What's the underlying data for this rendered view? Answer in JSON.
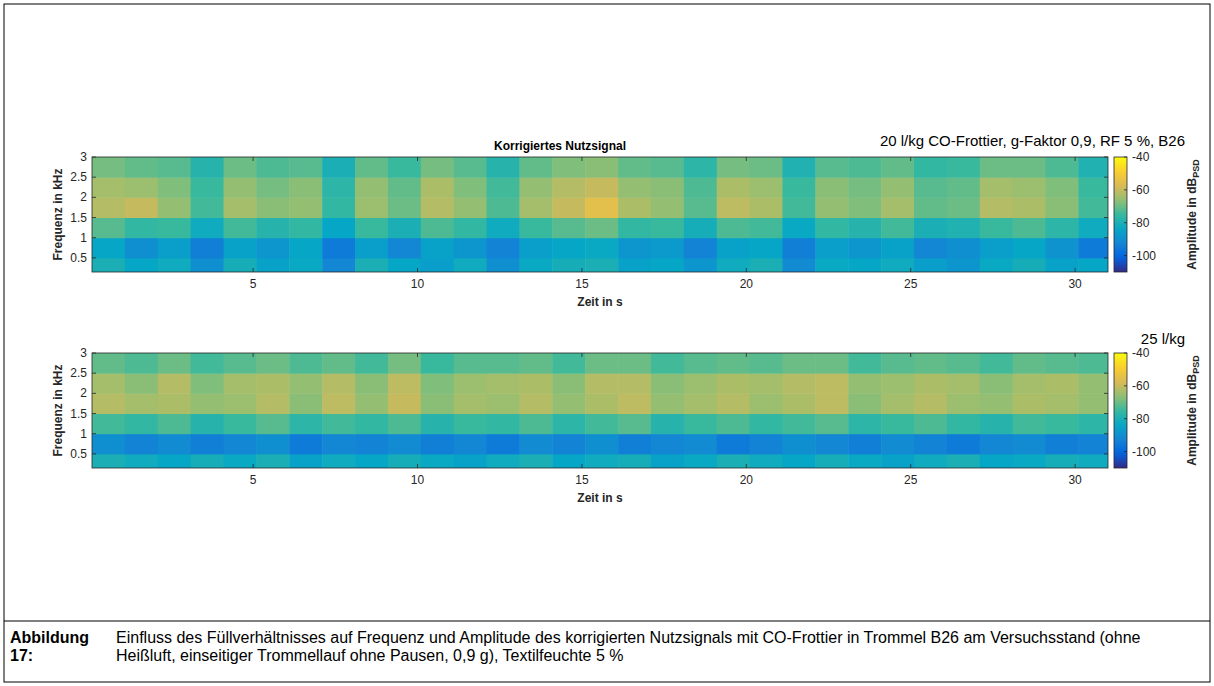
{
  "chart_data": [
    {
      "type": "heatmap",
      "title": "Korrigiertes Nutzsignal",
      "annotation": "20 l/kg CO-Frottier, g-Faktor 0,9, RF 5 %, B26",
      "x_label": "Zeit in s",
      "y_label": "Frequenz in kHz",
      "xlim": [
        0.1,
        31
      ],
      "ylim": [
        0.15,
        3
      ],
      "xticks": [
        5,
        10,
        15,
        20,
        25,
        30
      ],
      "yticks": [
        0.5,
        1,
        1.5,
        2,
        2.5,
        3
      ],
      "x_edges": [
        0.1,
        1.1,
        2.1,
        3.1,
        4.1,
        5.1,
        6.1,
        7.1,
        8.1,
        9.1,
        10.1,
        11.1,
        12.1,
        13.1,
        14.1,
        15.1,
        16.1,
        17.1,
        18.1,
        19.1,
        20.1,
        21.1,
        22.1,
        23.1,
        24.1,
        25.1,
        26.1,
        27.1,
        28.1,
        29.1,
        30.1,
        31
      ],
      "y_edges": [
        0.15,
        0.5,
        1,
        1.5,
        2,
        2.5,
        3
      ],
      "values": [
        [
          -80,
          -84,
          -82,
          -90,
          -81,
          -85,
          -83,
          -92,
          -80,
          -84,
          -86,
          -82,
          -90,
          -83,
          -81,
          -80,
          -85,
          -84,
          -88,
          -82,
          -80,
          -91,
          -83,
          -84,
          -82,
          -86,
          -88,
          -83,
          -81,
          -85,
          -84
        ],
        [
          -84,
          -90,
          -86,
          -94,
          -85,
          -88,
          -84,
          -95,
          -86,
          -92,
          -85,
          -88,
          -93,
          -86,
          -84,
          -83,
          -88,
          -87,
          -93,
          -85,
          -84,
          -94,
          -86,
          -88,
          -85,
          -92,
          -90,
          -86,
          -84,
          -89,
          -95
        ],
        [
          -72,
          -76,
          -75,
          -82,
          -74,
          -78,
          -76,
          -84,
          -75,
          -80,
          -73,
          -76,
          -82,
          -75,
          -72,
          -70,
          -76,
          -75,
          -81,
          -73,
          -74,
          -83,
          -76,
          -78,
          -74,
          -80,
          -79,
          -75,
          -73,
          -77,
          -82
        ],
        [
          -62,
          -60,
          -66,
          -74,
          -64,
          -67,
          -66,
          -76,
          -65,
          -70,
          -62,
          -66,
          -73,
          -64,
          -60,
          -55,
          -63,
          -66,
          -72,
          -61,
          -63,
          -74,
          -66,
          -68,
          -64,
          -71,
          -70,
          -62,
          -63,
          -67,
          -74
        ],
        [
          -64,
          -65,
          -68,
          -75,
          -66,
          -69,
          -67,
          -77,
          -66,
          -71,
          -63,
          -68,
          -74,
          -66,
          -62,
          -60,
          -66,
          -67,
          -73,
          -63,
          -65,
          -75,
          -67,
          -69,
          -66,
          -72,
          -71,
          -64,
          -65,
          -68,
          -75
        ],
        [
          -69,
          -71,
          -72,
          -78,
          -70,
          -73,
          -72,
          -80,
          -71,
          -75,
          -69,
          -72,
          -78,
          -71,
          -68,
          -67,
          -71,
          -72,
          -77,
          -69,
          -70,
          -79,
          -72,
          -73,
          -71,
          -76,
          -75,
          -70,
          -70,
          -73,
          -79
        ]
      ],
      "colorbar": {
        "range": [
          -110,
          -40
        ],
        "ticks": [
          -100,
          -80,
          -60,
          -40
        ],
        "label": "Amplitude in dB",
        "label_sub": "PSD"
      }
    },
    {
      "type": "heatmap",
      "annotation": "25 l/kg",
      "x_label": "Zeit in s",
      "y_label": "Frequenz in kHz",
      "xlim": [
        0.1,
        31
      ],
      "ylim": [
        0.15,
        3
      ],
      "xticks": [
        5,
        10,
        15,
        20,
        25,
        30
      ],
      "yticks": [
        0.5,
        1,
        1.5,
        2,
        2.5,
        3
      ],
      "x_edges": [
        0.1,
        1.1,
        2.1,
        3.1,
        4.1,
        5.1,
        6.1,
        7.1,
        8.1,
        9.1,
        10.1,
        11.1,
        12.1,
        13.1,
        14.1,
        15.1,
        16.1,
        17.1,
        18.1,
        19.1,
        20.1,
        21.1,
        22.1,
        23.1,
        24.1,
        25.1,
        26.1,
        27.1,
        28.1,
        29.1,
        30.1,
        31
      ],
      "y_edges": [
        0.15,
        0.5,
        1,
        1.5,
        2,
        2.5,
        3
      ],
      "values": [
        [
          -80,
          -82,
          -84,
          -81,
          -83,
          -80,
          -85,
          -82,
          -84,
          -81,
          -83,
          -85,
          -82,
          -80,
          -84,
          -82,
          -81,
          -85,
          -83,
          -80,
          -82,
          -84,
          -81,
          -83,
          -85,
          -82,
          -80,
          -84,
          -83,
          -81,
          -82
        ],
        [
          -90,
          -93,
          -91,
          -94,
          -92,
          -90,
          -95,
          -92,
          -93,
          -91,
          -94,
          -92,
          -95,
          -91,
          -93,
          -90,
          -94,
          -92,
          -91,
          -95,
          -93,
          -90,
          -92,
          -94,
          -91,
          -93,
          -95,
          -92,
          -91,
          -94,
          -93
        ],
        [
          -74,
          -76,
          -73,
          -78,
          -75,
          -72,
          -77,
          -74,
          -76,
          -73,
          -78,
          -75,
          -76,
          -73,
          -77,
          -74,
          -72,
          -78,
          -75,
          -73,
          -76,
          -74,
          -72,
          -77,
          -75,
          -73,
          -76,
          -78,
          -74,
          -75,
          -77
        ],
        [
          -62,
          -64,
          -63,
          -66,
          -65,
          -62,
          -67,
          -61,
          -66,
          -60,
          -67,
          -64,
          -65,
          -62,
          -66,
          -63,
          -61,
          -66,
          -64,
          -62,
          -65,
          -63,
          -61,
          -67,
          -64,
          -62,
          -65,
          -66,
          -63,
          -64,
          -66
        ],
        [
          -64,
          -67,
          -62,
          -68,
          -64,
          -63,
          -66,
          -62,
          -67,
          -61,
          -68,
          -65,
          -64,
          -63,
          -67,
          -62,
          -62,
          -67,
          -65,
          -63,
          -64,
          -62,
          -61,
          -66,
          -65,
          -63,
          -64,
          -67,
          -64,
          -63,
          -66
        ],
        [
          -71,
          -73,
          -70,
          -74,
          -72,
          -70,
          -73,
          -71,
          -74,
          -69,
          -75,
          -72,
          -72,
          -71,
          -74,
          -70,
          -70,
          -74,
          -72,
          -71,
          -72,
          -70,
          -70,
          -74,
          -72,
          -71,
          -72,
          -74,
          -71,
          -72,
          -73
        ]
      ],
      "colorbar": {
        "range": [
          -110,
          -40
        ],
        "ticks": [
          -100,
          -80,
          -60,
          -40
        ],
        "label": "Amplitude in dB",
        "label_sub": "PSD"
      }
    }
  ],
  "caption": {
    "label": "Abbildung 17:",
    "text": "Einfluss des Füllverhältnisses auf Frequenz und Amplitude des korrigierten Nutzsignals mit CO-Frottier in Trommel B26 am Versuchsstand (ohne Heißluft, einseitiger Trommellauf ohne Pausen, 0,9 g), Textilfeuchte 5 %"
  }
}
